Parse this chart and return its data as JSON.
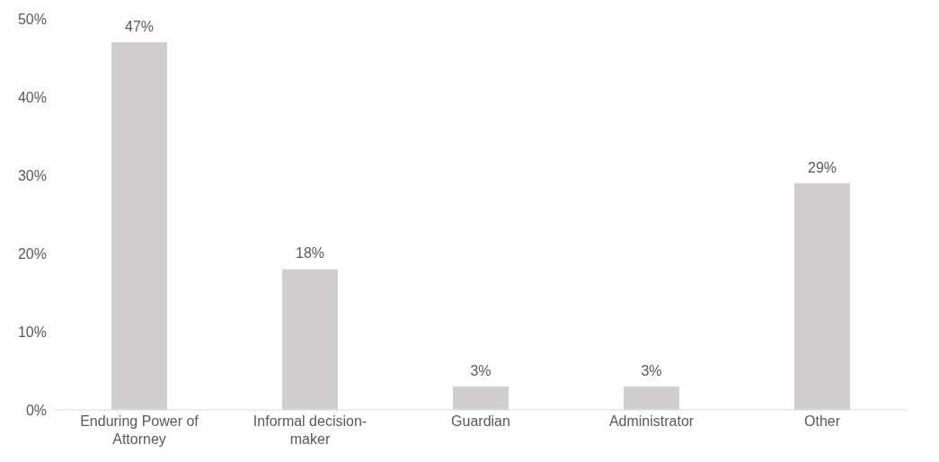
{
  "chart_data": {
    "type": "bar",
    "categories": [
      "Enduring Power of Attorney",
      "Informal decision-maker",
      "Guardian",
      "Administrator",
      "Other"
    ],
    "values": [
      47,
      18,
      3,
      3,
      29
    ],
    "color": "#d0cece",
    "value_labels": [
      "47%",
      "18%",
      "3%",
      "3%",
      "29%"
    ],
    "ylim": [
      0,
      50
    ],
    "yticks": [
      {
        "value": 0,
        "label": "0%"
      },
      {
        "value": 10,
        "label": "10%"
      },
      {
        "value": 20,
        "label": "20%"
      },
      {
        "value": 30,
        "label": "30%"
      },
      {
        "value": 40,
        "label": "40%"
      },
      {
        "value": 50,
        "label": "50%"
      }
    ],
    "grid": false,
    "legend": false
  }
}
